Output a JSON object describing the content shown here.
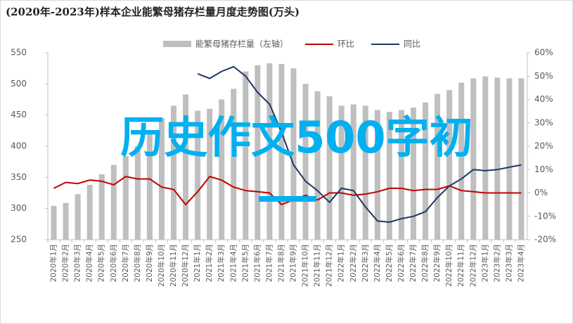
{
  "chart_data": {
    "type": "bar_line",
    "title": "(2020年-2023年)样本企业能繁母猪存栏量月度走势图(万头)",
    "overlay_text": "历史作文500字初",
    "categories": [
      "2020年1月",
      "2020年2月",
      "2020年3月",
      "2020年4月",
      "2020年5月",
      "2020年6月",
      "2020年7月",
      "2020年8月",
      "2020年9月",
      "2020年10月",
      "2020年11月",
      "2020年12月",
      "2021年1月",
      "2021年2月",
      "2021年3月",
      "2021年4月",
      "2021年5月",
      "2021年6月",
      "2021年7月",
      "2021年8月",
      "2021年9月",
      "2021年10月",
      "2021年11月",
      "2021年12月",
      "2022年1月",
      "2022年2月",
      "2022年3月",
      "2022年4月",
      "2022年5月",
      "2022年6月",
      "2022年7月",
      "2022年8月",
      "2022年9月",
      "2022年10月",
      "2022年11月",
      "2022年12月",
      "2023年1月",
      "2023年2月",
      "2023年3月",
      "2023年4月"
    ],
    "series": [
      {
        "name": "能繁母猪存栏量（左轴）",
        "kind": "bar",
        "axis": "y",
        "color": "#bfbfbf",
        "values": [
          304,
          309,
          323,
          338,
          355,
          370,
          384,
          400,
          420,
          445,
          465,
          483,
          457,
          460,
          475,
          492,
          520,
          530,
          533,
          532,
          525,
          500,
          488,
          480,
          465,
          467,
          465,
          458,
          455,
          458,
          462,
          470,
          484,
          490,
          502,
          509,
          512,
          510,
          509,
          509
        ]
      },
      {
        "name": "环比",
        "kind": "line",
        "axis": "y2",
        "color": "#c00000",
        "values": [
          2,
          4.5,
          4,
          5.5,
          5,
          3.5,
          7,
          6,
          6,
          2.5,
          1.5,
          -5,
          0.5,
          7,
          5.5,
          2.5,
          1,
          0.5,
          0,
          -5,
          -3,
          -1,
          -3,
          0,
          0,
          -1,
          -0.5,
          0.5,
          2,
          2,
          1,
          1.5,
          1.5,
          3,
          1,
          0.5,
          0,
          0,
          0,
          0
        ]
      },
      {
        "name": "同比",
        "kind": "line",
        "axis": "y2",
        "color": "#1f3864",
        "values": [
          null,
          null,
          null,
          null,
          null,
          null,
          null,
          null,
          null,
          null,
          null,
          null,
          51,
          49,
          52,
          54,
          50,
          43,
          38,
          26,
          12,
          5,
          1,
          -4,
          2,
          1,
          -6,
          -12,
          -12.5,
          -11,
          -10,
          -8,
          -2,
          3,
          6,
          10,
          9.5,
          10,
          11,
          12
        ]
      }
    ],
    "ylim": [
      250,
      550
    ],
    "yticks": [
      250,
      300,
      350,
      400,
      450,
      500,
      550
    ],
    "y2lim": [
      -20,
      60
    ],
    "y2ticks": [
      {
        "value": -20,
        "label": "-20%"
      },
      {
        "value": -10,
        "label": "-10%"
      },
      {
        "value": 0,
        "label": "0%"
      },
      {
        "value": 10,
        "label": "10%"
      },
      {
        "value": 20,
        "label": "20%"
      },
      {
        "value": 30,
        "label": "30%"
      },
      {
        "value": 40,
        "label": "40%"
      },
      {
        "value": 50,
        "label": "50%"
      },
      {
        "value": 60,
        "label": "60%"
      }
    ]
  }
}
